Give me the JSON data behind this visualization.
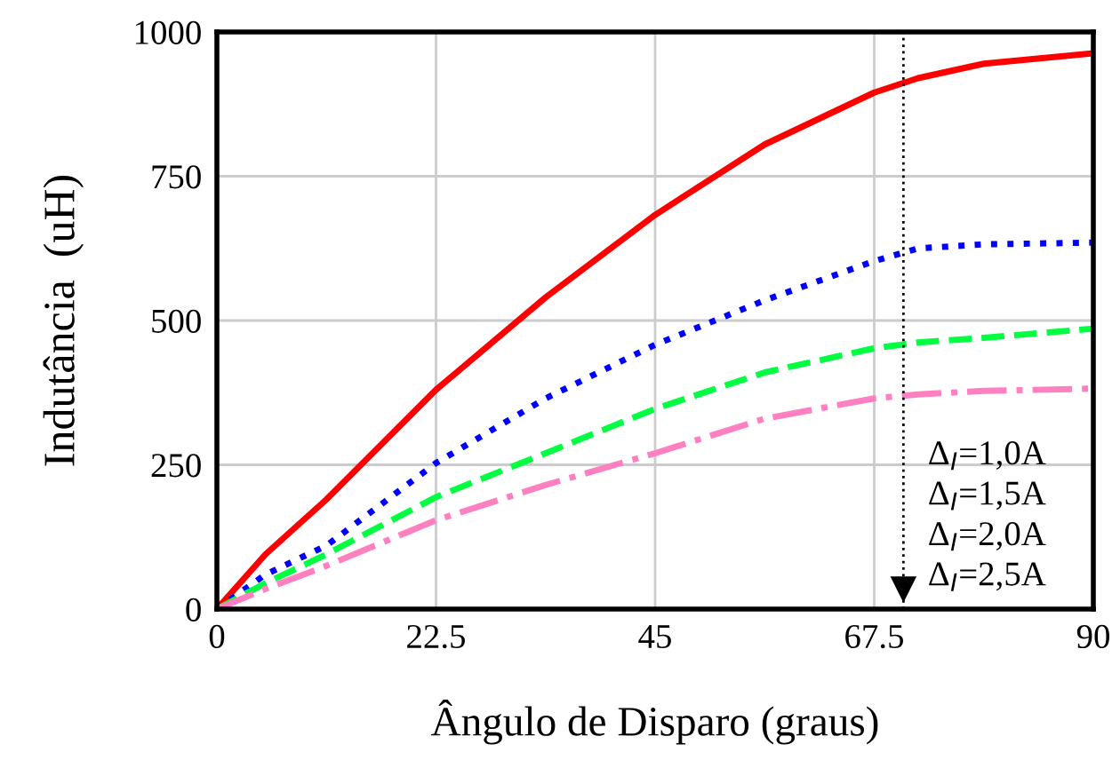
{
  "chart_data": {
    "type": "line",
    "xlabel": "Ângulo de Disparo (graus)",
    "ylabel": "Indutância  (uH)",
    "x": [
      0,
      5,
      11.25,
      22.5,
      33.75,
      45,
      56.25,
      67.5,
      72,
      78.75,
      90
    ],
    "series": [
      {
        "color": "#ff0000",
        "line_style": "solid",
        "values": [
          0,
          95,
          190,
          380,
          540,
          683,
          805,
          895,
          920,
          945,
          963
        ]
      },
      {
        "color": "#0000ff",
        "line_style": "dotted",
        "values": [
          0,
          60,
          110,
          253,
          365,
          458,
          535,
          603,
          625,
          632,
          635
        ]
      },
      {
        "color": "#00ff40",
        "line_style": "dashed",
        "values": [
          0,
          45,
          95,
          194,
          270,
          347,
          410,
          452,
          462,
          470,
          486
        ]
      },
      {
        "color": "#ff80c0",
        "line_style": "dashdot",
        "values": [
          0,
          35,
          75,
          154,
          215,
          270,
          330,
          365,
          372,
          378,
          382
        ]
      }
    ],
    "xlim": [
      0,
      90
    ],
    "ylim": [
      0,
      1000
    ],
    "xticks": [
      0,
      22.5,
      45,
      67.5,
      90
    ],
    "yticks": [
      0,
      250,
      500,
      750,
      1000
    ],
    "grid": true,
    "ref_lines": [
      {
        "axis": "x",
        "value": 70.5,
        "color": "#000000",
        "line_style": "dotted"
      }
    ],
    "annotations": [
      "Δ$_{I}$=1,0A",
      "Δ$_{I}$=1,5A",
      "Δ$_{I}$=2,0A",
      "Δ$_{I}$=2,5A"
    ]
  }
}
